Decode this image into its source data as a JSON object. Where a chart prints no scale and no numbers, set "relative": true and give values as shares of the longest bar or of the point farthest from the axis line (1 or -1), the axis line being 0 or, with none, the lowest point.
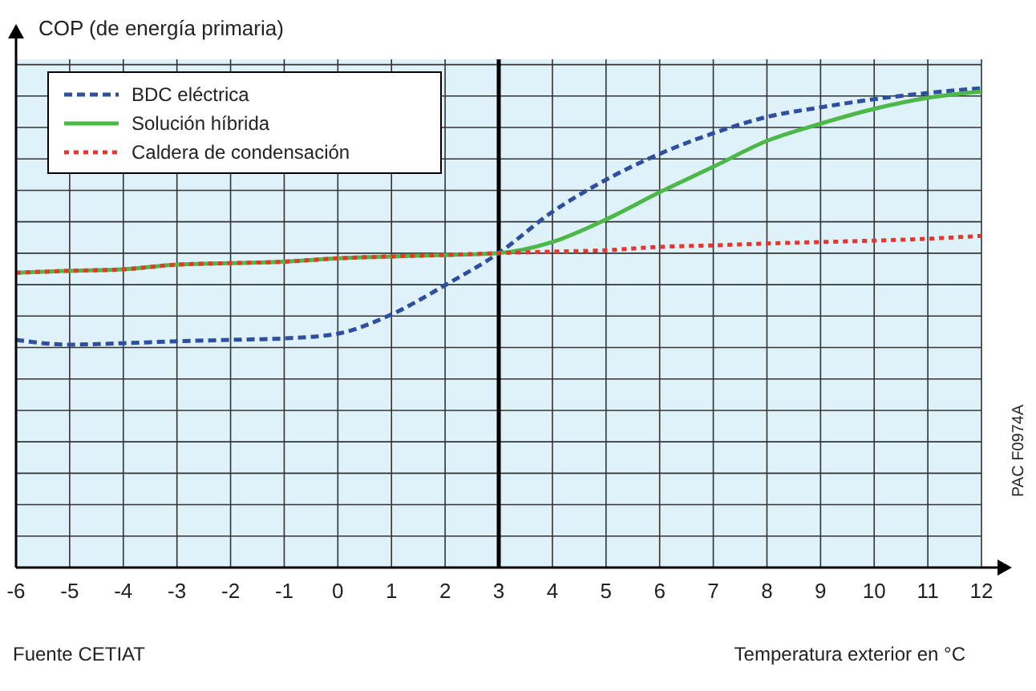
{
  "chart_data": {
    "type": "line",
    "ylabel": "COP (de energía primaria)",
    "xlabel": "Temperatura exterior en °C",
    "annotations": [
      "Fuente CETIAT",
      "PAC  F0974A"
    ],
    "x": [
      -6,
      -5,
      -4,
      -3,
      -2,
      -1,
      0,
      1,
      2,
      3,
      4,
      5,
      6,
      7,
      8,
      9,
      10,
      11,
      12
    ],
    "xlim": [
      -6,
      12
    ],
    "xticks": [
      -6,
      -5,
      -4,
      -3,
      -2,
      -1,
      0,
      1,
      2,
      3,
      4,
      5,
      6,
      7,
      8,
      9,
      10,
      11,
      12
    ],
    "relative": true,
    "grid": true,
    "legend": "top left",
    "marker": "none",
    "ref_lines": [
      {
        "axis": "x",
        "value": 3,
        "color": "#000000"
      }
    ],
    "series": [
      {
        "name": "BDC eléctrica",
        "color": "#2e4ea0",
        "line_style": "dashed",
        "values": [
          0.475,
          0.465,
          0.468,
          0.472,
          0.475,
          0.478,
          0.488,
          0.528,
          0.589,
          0.656,
          0.742,
          0.809,
          0.863,
          0.906,
          0.94,
          0.96,
          0.977,
          0.99,
          1
        ]
      },
      {
        "name": "Solución híbrida",
        "color": "#4cb848",
        "line_style": "solid",
        "values": [
          0.615,
          0.619,
          0.622,
          0.632,
          0.635,
          0.638,
          0.645,
          0.649,
          0.652,
          0.656,
          0.679,
          0.726,
          0.783,
          0.836,
          0.89,
          0.926,
          0.957,
          0.98,
          0.993
        ]
      },
      {
        "name": "Caldera de condensación",
        "color": "#e8362c",
        "line_style": "dotted",
        "values": [
          0.615,
          0.619,
          0.622,
          0.632,
          0.635,
          0.638,
          0.645,
          0.649,
          0.652,
          0.656,
          0.659,
          0.662,
          0.669,
          0.672,
          0.676,
          0.679,
          0.682,
          0.686,
          0.692
        ]
      }
    ]
  }
}
